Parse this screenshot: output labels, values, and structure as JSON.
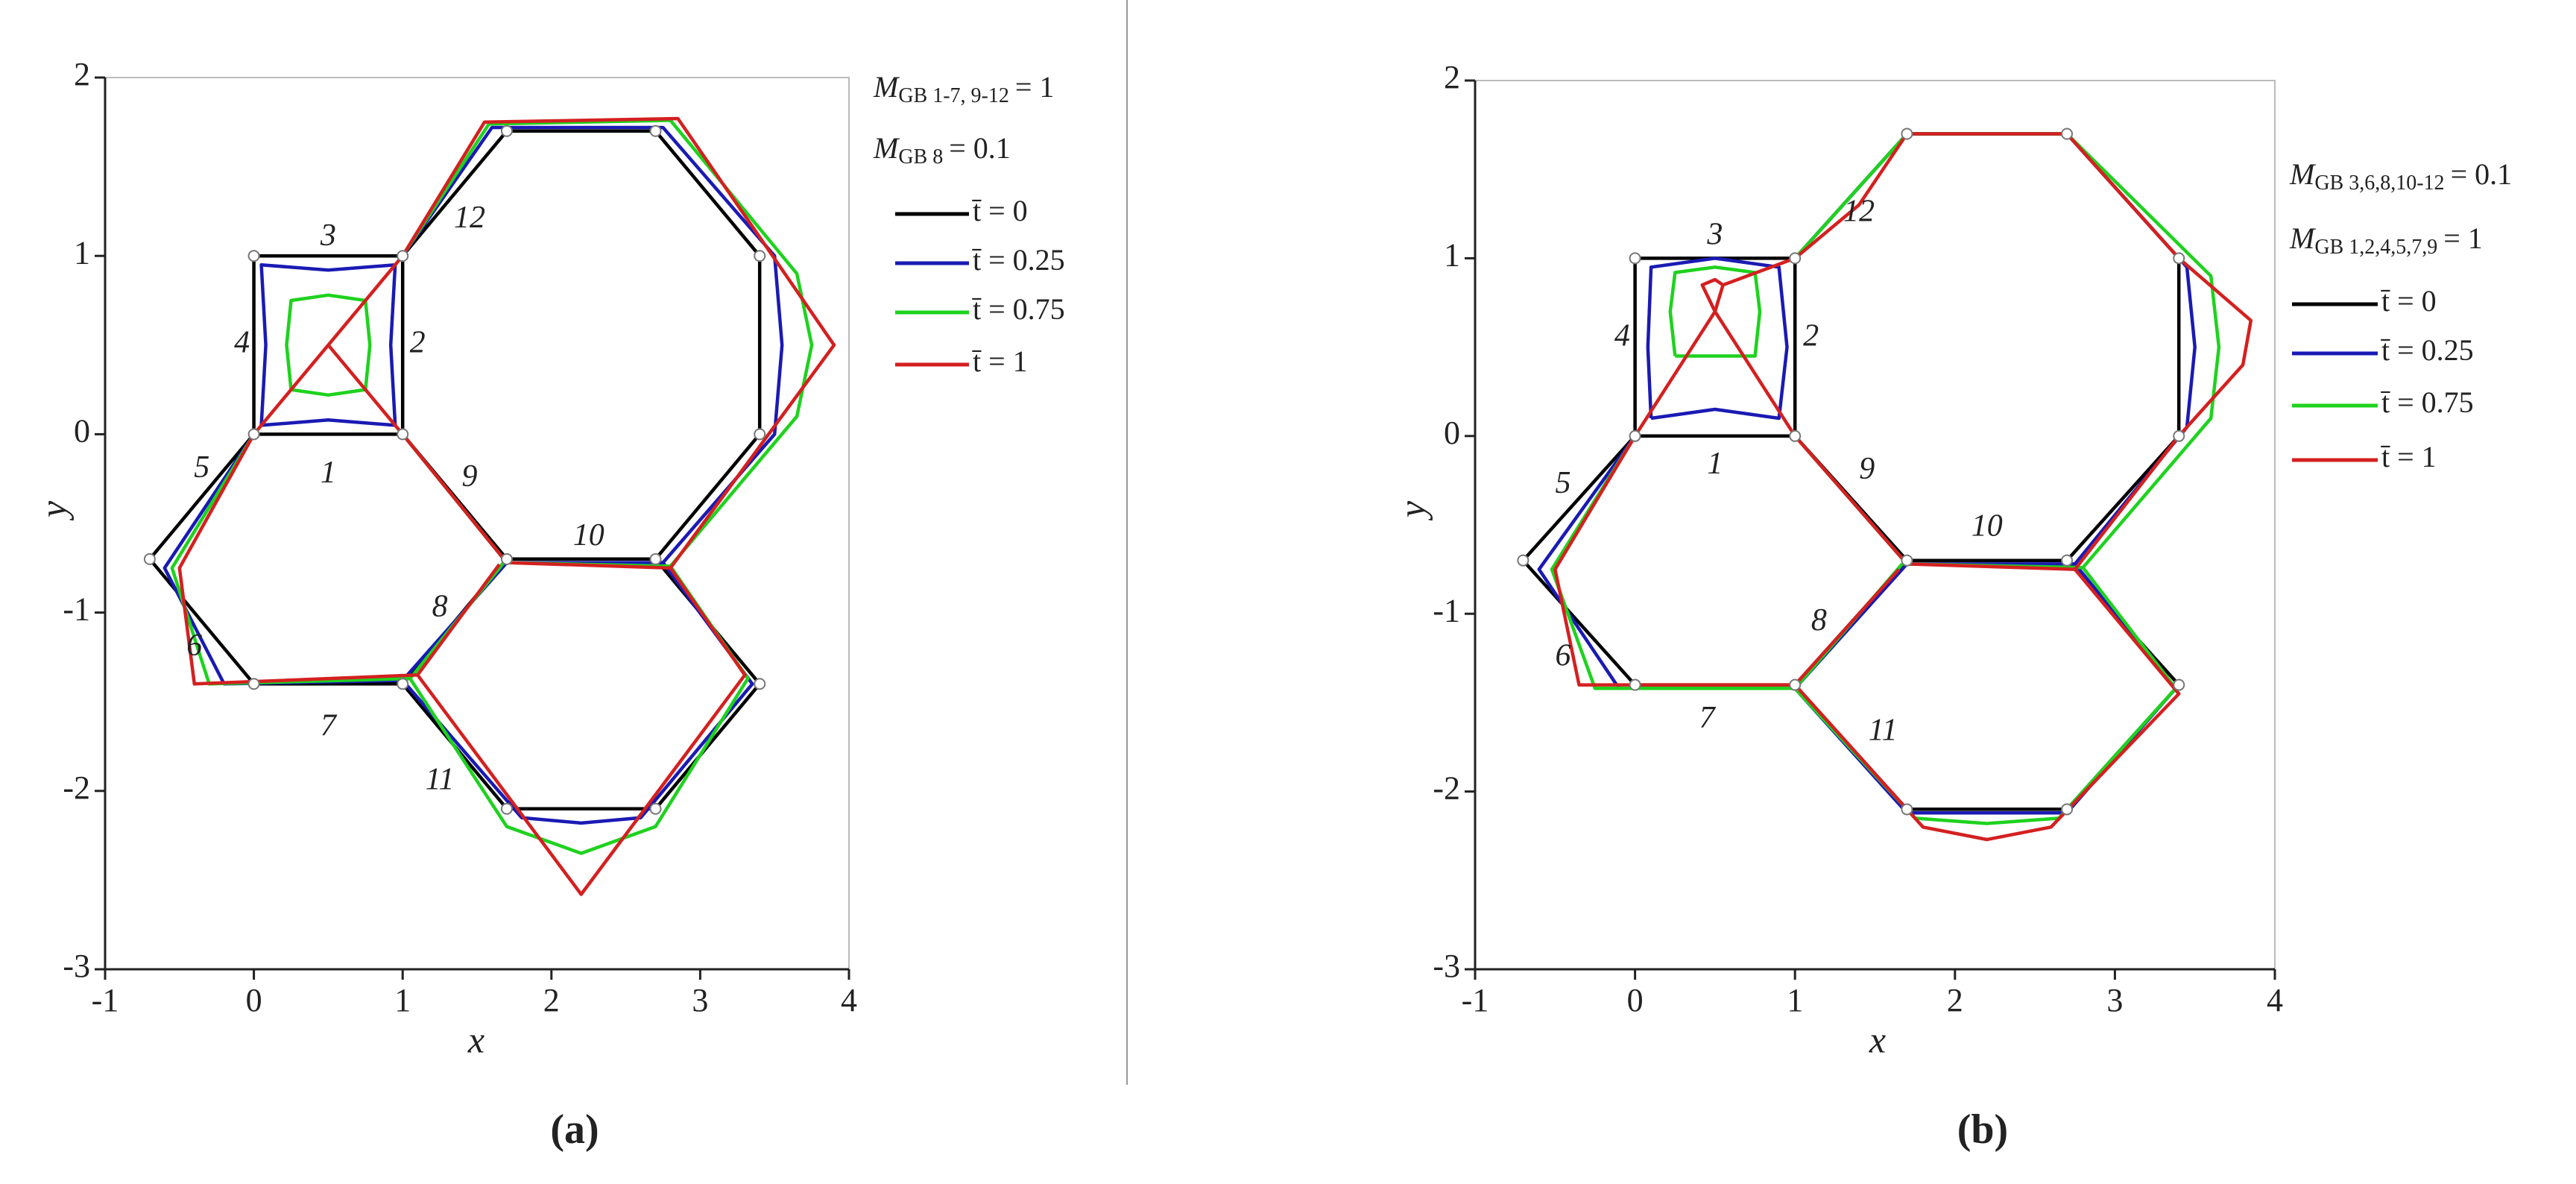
{
  "chart_data": [
    {
      "type": "line",
      "caption": "(a)",
      "xlabel": "x",
      "ylabel": "y",
      "xlim": [
        -1,
        4
      ],
      "ylim": [
        -3,
        2
      ],
      "xticks": [
        -1,
        0,
        1,
        2,
        3,
        4
      ],
      "yticks": [
        -3,
        -2,
        -1,
        0,
        1,
        2
      ],
      "legend_notes": [
        {
          "symbol": "M",
          "subscript": "GB 1-7, 9-12",
          "text": "= 1"
        },
        {
          "symbol": "M",
          "subscript": "GB 8",
          "text": "= 0.1"
        }
      ],
      "boundary_labels": [
        "1",
        "2",
        "3",
        "4",
        "5",
        "6",
        "7",
        "8",
        "9",
        "10",
        "11",
        "12"
      ],
      "series": [
        {
          "name": "t̄ = 0",
          "color": "#000000",
          "x": [
            0,
            1,
            1,
            0,
            0,
            null,
            1,
            1.7,
            2.7,
            3.4,
            3.4,
            2.7,
            1.7,
            1,
            null,
            0,
            -0.7,
            0,
            1,
            1.7,
            null,
            2.7,
            3.4,
            2.7,
            1.7,
            1
          ],
          "y": [
            0,
            0,
            1,
            1,
            0,
            null,
            1,
            1.7,
            1.7,
            1,
            0,
            -0.7,
            -0.7,
            0,
            null,
            0,
            -0.7,
            -1.4,
            -1.4,
            -0.7,
            null,
            -0.7,
            -1.4,
            -2.1,
            -2.1,
            -1.4
          ]
        },
        {
          "name": "t̄ = 0.25",
          "color": "#1a1ab4",
          "x": [
            0.05,
            0.5,
            0.95,
            0.92,
            0.95,
            0.5,
            0.05,
            0.08,
            0.05,
            null,
            1,
            1.6,
            2.75,
            3.5,
            3.55,
            3.5,
            2.75,
            1.7,
            1,
            null,
            0,
            -0.6,
            -0.2,
            1,
            1.7,
            null,
            2.75,
            3.35,
            2.6,
            2.2,
            1.8,
            1
          ],
          "y": [
            0.05,
            0.08,
            0.05,
            0.5,
            0.95,
            0.92,
            0.95,
            0.5,
            0.05,
            null,
            1,
            1.72,
            1.72,
            1,
            0.5,
            0,
            -0.72,
            -0.72,
            0,
            null,
            0,
            -0.75,
            -1.4,
            -1.38,
            -0.72,
            null,
            -0.72,
            -1.4,
            -2.15,
            -2.18,
            -2.15,
            -1.38
          ]
        },
        {
          "name": "t̄ = 0.75",
          "color": "#1ed21e",
          "x": [
            0.25,
            0.5,
            0.75,
            0.78,
            0.75,
            0.5,
            0.25,
            0.22,
            0.25,
            null,
            1,
            1.58,
            2.8,
            3.65,
            3.75,
            3.65,
            2.8,
            1.7,
            1,
            null,
            0,
            -0.55,
            -0.3,
            1.05,
            1.68,
            null,
            2.8,
            3.32,
            2.7,
            2.2,
            1.7,
            1.05
          ],
          "y": [
            0.25,
            0.22,
            0.25,
            0.5,
            0.75,
            0.78,
            0.75,
            0.5,
            0.25,
            null,
            1,
            1.74,
            1.76,
            0.9,
            0.5,
            0.1,
            -0.74,
            -0.72,
            0,
            null,
            0,
            -0.75,
            -1.4,
            -1.37,
            -0.72,
            null,
            -0.74,
            -1.37,
            -2.2,
            -2.35,
            -2.2,
            -1.37
          ]
        },
        {
          "name": "t̄ = 1",
          "color": "#d42020",
          "x": [
            0,
            0.5,
            1,
            null,
            0.5,
            1,
            null,
            1,
            1.55,
            2.85,
            3.9,
            2.8,
            1.7,
            1,
            null,
            0,
            -0.5,
            -0.4,
            1.1,
            1.65,
            null,
            2.8,
            3.3,
            2.2,
            1.1
          ],
          "y": [
            0,
            0.5,
            0,
            null,
            0.5,
            1,
            null,
            1,
            1.75,
            1.77,
            0.5,
            -0.75,
            -0.72,
            0,
            null,
            0,
            -0.75,
            -1.4,
            -1.35,
            -0.73,
            null,
            -0.75,
            -1.35,
            -2.58,
            -1.35
          ]
        }
      ]
    },
    {
      "type": "line",
      "caption": "(b)",
      "xlabel": "x",
      "ylabel": "y",
      "xlim": [
        -1,
        4
      ],
      "ylim": [
        -3,
        2
      ],
      "xticks": [
        -1,
        0,
        1,
        2,
        3,
        4
      ],
      "yticks": [
        -3,
        -2,
        -1,
        0,
        1,
        2
      ],
      "legend_notes": [
        {
          "symbol": "M",
          "subscript": "GB 3,6,8,10-12",
          "text": "= 0.1"
        },
        {
          "symbol": "M",
          "subscript": "GB 1,2,4,5,7,9",
          "text": "= 1"
        }
      ],
      "boundary_labels": [
        "1",
        "2",
        "3",
        "4",
        "5",
        "6",
        "7",
        "8",
        "9",
        "10",
        "11",
        "12"
      ],
      "series": [
        {
          "name": "t̄ = 0",
          "color": "#000000",
          "x": [
            0,
            1,
            1,
            0,
            0,
            null,
            1,
            1.7,
            2.7,
            3.4,
            3.4,
            2.7,
            1.7,
            1,
            null,
            0,
            -0.7,
            0,
            1,
            1.7,
            null,
            2.7,
            3.4,
            2.7,
            1.7,
            1
          ],
          "y": [
            0,
            0,
            1,
            1,
            0,
            null,
            1,
            1.7,
            1.7,
            1,
            0,
            -0.7,
            -0.7,
            0,
            null,
            0,
            -0.7,
            -1.4,
            -1.4,
            -0.7,
            null,
            -0.7,
            -1.4,
            -2.1,
            -2.1,
            -1.4
          ]
        },
        {
          "name": "t̄ = 0.25",
          "color": "#1a1ab4",
          "x": [
            0.1,
            0.5,
            0.9,
            0.95,
            0.9,
            0.5,
            0.1,
            0.08,
            0.1,
            null,
            1,
            1.7,
            2.7,
            3.45,
            3.5,
            3.45,
            2.75,
            1.7,
            1,
            null,
            0,
            -0.6,
            -0.1,
            1,
            1.7,
            null,
            2.75,
            3.38,
            2.7,
            1.7,
            1
          ],
          "y": [
            0.1,
            0.15,
            0.1,
            0.5,
            0.95,
            1,
            0.95,
            0.5,
            0.1,
            null,
            1,
            1.7,
            1.7,
            0.95,
            0.5,
            0.05,
            -0.72,
            -0.72,
            0,
            null,
            0,
            -0.75,
            -1.42,
            -1.42,
            -0.72,
            null,
            -0.72,
            -1.42,
            -2.12,
            -2.12,
            -1.42
          ]
        },
        {
          "name": "t̄ = 0.75",
          "color": "#1ed21e",
          "x": [
            0.25,
            0.5,
            0.75,
            0.78,
            0.75,
            0.5,
            0.25,
            0.22,
            0.25,
            null,
            1,
            1.7,
            2.7,
            3.6,
            3.65,
            3.6,
            2.8,
            1.7,
            1,
            null,
            0,
            -0.52,
            -0.25,
            1,
            1.67,
            null,
            2.8,
            3.38,
            2.65,
            2.2,
            1.75,
            1
          ],
          "y": [
            0.45,
            0.45,
            0.45,
            0.7,
            0.92,
            0.95,
            0.92,
            0.7,
            0.45,
            null,
            1,
            1.7,
            1.7,
            0.9,
            0.5,
            0.1,
            -0.74,
            -0.72,
            0,
            null,
            0,
            -0.75,
            -1.42,
            -1.42,
            -0.72,
            null,
            -0.74,
            -1.42,
            -2.15,
            -2.18,
            -2.15,
            -1.42
          ]
        },
        {
          "name": "t̄ = 1",
          "color": "#d42020",
          "x": [
            0,
            0.5,
            1,
            null,
            0.5,
            0.42,
            0.5,
            0.55,
            0.5,
            null,
            0.55,
            1,
            1.4,
            1.7,
            2.7,
            3.4,
            3.85,
            3.8,
            3.4,
            2.75,
            1.7,
            1,
            null,
            0,
            -0.5,
            -0.35,
            1,
            1.65,
            null,
            2.75,
            3.4,
            2.6,
            2.2,
            1.8,
            1
          ],
          "y": [
            0,
            0.7,
            0,
            null,
            0.7,
            0.85,
            0.88,
            0.85,
            0.7,
            null,
            0.85,
            1,
            1.3,
            1.7,
            1.7,
            1,
            0.65,
            0.4,
            0,
            -0.75,
            -0.72,
            0,
            null,
            0,
            -0.75,
            -1.4,
            -1.4,
            -0.75,
            null,
            -0.75,
            -1.45,
            -2.2,
            -2.27,
            -2.2,
            -1.4
          ]
        }
      ]
    }
  ]
}
